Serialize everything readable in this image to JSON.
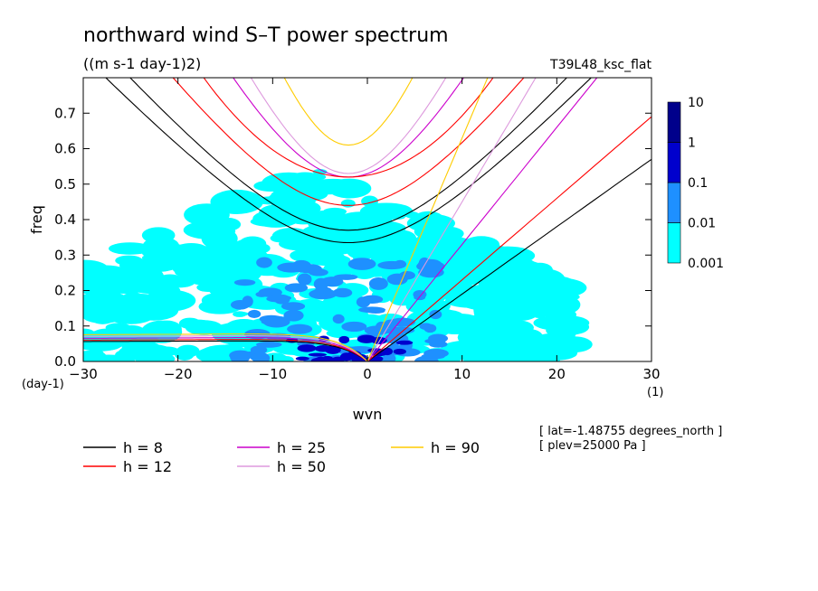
{
  "chart_data": {
    "type": "contour",
    "title": "northward wind S–T power spectrum",
    "subtitle": "((m s-1 day-1)2)",
    "run_label": "T39L48_ksc_flat",
    "xlabel": "wvn",
    "ylabel": "freq",
    "x_unit": "(1)",
    "y_unit": "(day-1)",
    "xlim": [
      -30,
      30
    ],
    "ylim": [
      0,
      0.8
    ],
    "x_ticks": [
      "-30",
      "-20",
      "-10",
      "0",
      "10",
      "20",
      "30"
    ],
    "y_ticks": [
      "0.0",
      "0.1",
      "0.2",
      "0.3",
      "0.4",
      "0.5",
      "0.6",
      "0.7"
    ],
    "colorbar": {
      "levels": [
        "0.001",
        "0.01",
        "0.1",
        "1",
        "10"
      ],
      "colors": [
        "#00ffff",
        "#1e90ff",
        "#0000cd",
        "#00008b"
      ]
    },
    "series": [
      {
        "name": "h =  8",
        "color": "#000000"
      },
      {
        "name": "h = 12",
        "color": "#ff0000"
      },
      {
        "name": "h = 25",
        "color": "#cc00cc"
      },
      {
        "name": "h = 50",
        "color": "#dd99dd"
      },
      {
        "name": "h = 90",
        "color": "#ffcc00"
      }
    ],
    "annotations": [
      "[ lat=-1.48755 degrees_north ]",
      "[ plev=25000 Pa ]"
    ]
  }
}
